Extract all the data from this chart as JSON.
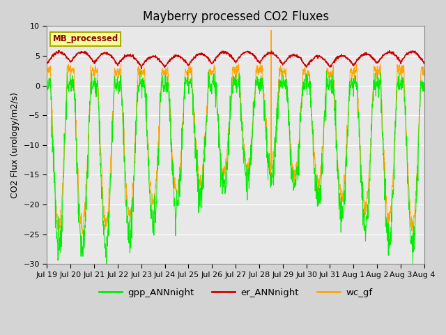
{
  "title": "Mayberry processed CO2 Fluxes",
  "ylabel": "CO2 Flux (urology/m2/s)",
  "ylim": [
    -30,
    10
  ],
  "yticks": [
    -30,
    -25,
    -20,
    -15,
    -10,
    -5,
    0,
    5,
    10
  ],
  "fig_bg_color": "#d4d4d4",
  "plot_bg_color": "#e8e8e8",
  "gpp_color": "#00ee00",
  "er_color": "#cc0000",
  "wc_color": "#ffa500",
  "legend_label": "MB_processed",
  "legend_label_color": "#8b0000",
  "legend_bg": "#ffff99",
  "legend_border": "#aaaa00",
  "series_labels": [
    "gpp_ANNnight",
    "er_ANNnight",
    "wc_gf"
  ],
  "n_days": 16,
  "points_per_day": 96,
  "title_fontsize": 12,
  "tick_fontsize": 8,
  "label_fontsize": 9,
  "linewidth": 0.7
}
